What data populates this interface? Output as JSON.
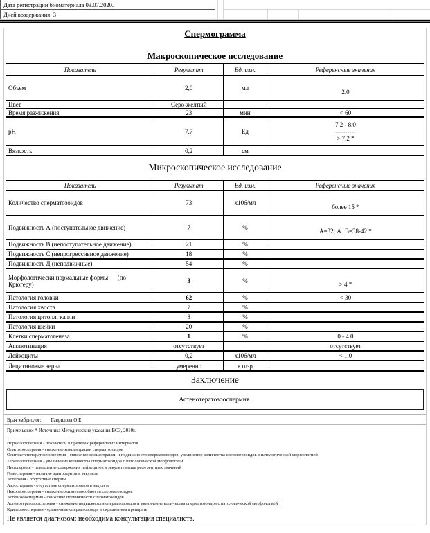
{
  "header": {
    "date_line": "Дата регистрации биоматериала  03.07.2020.",
    "abstinence_line": "Дней воздержания: 3"
  },
  "titles": {
    "main": "Спермограмма",
    "macro": "Макроскопическое исследование",
    "micro": "Микроскопическое исследование",
    "conclusion": "Заключение"
  },
  "columns": [
    "Показатель",
    "Результат",
    "Ед. изм.",
    "Референсные значения"
  ],
  "macro_rows": [
    {
      "name": "Объем",
      "result": "2,0",
      "unit": "мл",
      "ref": "2.0",
      "tall": true
    },
    {
      "name": "Цвет",
      "result": "Серо-желтый",
      "unit": "",
      "ref": ""
    },
    {
      "name": "Время разжижения",
      "result": "23",
      "unit": "мин",
      "ref": "< 60"
    },
    {
      "name": "pH",
      "result": "7.7",
      "unit": "Ед",
      "ref_lines": [
        "7.2 - 8.0",
        "----------",
        "> 7.2 *"
      ]
    },
    {
      "name": "Вязкость",
      "result": "0,2",
      "unit": "см",
      "ref": ""
    }
  ],
  "micro_rows": [
    {
      "name": "Количество сперматозоидов",
      "result": "73",
      "unit": "x106/мл",
      "ref": "более 15 *",
      "tall": true
    },
    {
      "name": "Подвижность А (поступательное движение)",
      "result": "7",
      "unit": "%",
      "ref": "А=32; А+В=38-42 *",
      "tall": true
    },
    {
      "name": "Подвижность В (непоступательное движение)",
      "result": "21",
      "unit": "%",
      "ref": ""
    },
    {
      "name": "Подвижность С (непрогрессивное движение)",
      "result": "18",
      "unit": "%",
      "ref": ""
    },
    {
      "name": "Подвижность Д (неподвижные)",
      "result": "54",
      "unit": "%",
      "ref": ""
    },
    {
      "name": "Морфологически нормальные формы      (по\nКрюгеру)",
      "result": "3",
      "unit": "%",
      "ref": "> 4 *",
      "bold": true,
      "tall": true
    },
    {
      "name": "Патология головки",
      "result": "62",
      "unit": "%",
      "ref": "< 30",
      "bold": true
    },
    {
      "name": "Патология хвоста",
      "result": "7",
      "unit": "%",
      "ref": ""
    },
    {
      "name": "Патология цитопл. капли",
      "result": "8",
      "unit": "%",
      "ref": ""
    },
    {
      "name": "Патология шейки",
      "result": "20",
      "unit": "%",
      "ref": ""
    },
    {
      "name": "Клетки сперматогенеза",
      "result": "1",
      "unit": "%",
      "ref": "0 - 4.0",
      "bold": true
    },
    {
      "name": "Агглютинация",
      "result": "отсутствует",
      "unit": "",
      "ref": "отсутствует"
    },
    {
      "name": "Лейкоциты",
      "result": "0,2",
      "unit": "x106/мл",
      "ref": "< 1.0"
    },
    {
      "name": "Лецитиновые зерна",
      "result": "умеренно",
      "unit": "в п/зр",
      "ref": ""
    }
  ],
  "conclusion_text": "Астенотератозооспермия.",
  "footer": {
    "doctor_label": "Врач эмбриолог:",
    "doctor_name": "Гаврилова О.Е.",
    "note": "Примечание:  * Источник: Методические указания ВОЗ, 2010г.",
    "definitions": [
      "Нормозооспермия - показатели в пределах референтных интервалов",
      "Олигозооспермия - снижение концентрации сперматозоидов",
      "Олигоастенотератозооспермия - снижение концентрации и подвижности сперматозоидов, увеличение количества сперматозоидов с патологической морфологией",
      "Тератозооспермия - увеличение количества сперматозоидов с патологической морфологией",
      "Пиоспермия - повышение содержания лейкоцитов в эякуляте выше референтных значений",
      "Гемоспермия - наличие эритроцитов в эякуляте",
      "Аспермия - отсутствие спермы",
      "Азооспермия - отсутствие сперматозоидов в эякуляте",
      "Некрозооспермия - снижение жизнеспособности сперматозоидов",
      "Астенозооспермия - снижение подвижности сперматозоидов",
      "Астенотератозооспермия - снижение подвижности сперматозоидов и увеличение количества сперматозоидов с патологической морфологией",
      "Криптозооспермия - единичные сперматозоиды в окрашенном препарате"
    ],
    "disclaimer": "Не является диагнозом: необходима консультация специалиста."
  }
}
